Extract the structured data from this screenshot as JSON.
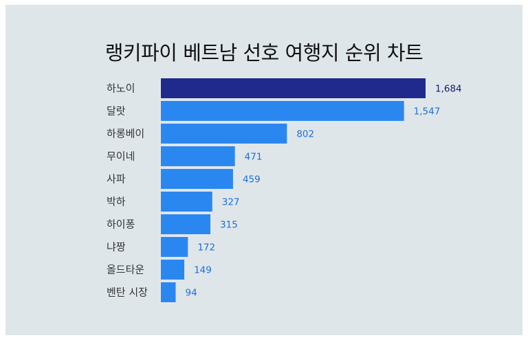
{
  "chart_data": {
    "type": "bar",
    "orientation": "horizontal",
    "title": "랭키파이 베트남 선호 여행지 순위 차트",
    "categories": [
      "하노이",
      "달랏",
      "하롱베이",
      "무이네",
      "사파",
      "박하",
      "하이퐁",
      "냐짱",
      "올드타운",
      "벤탄 시장"
    ],
    "values": [
      1684,
      1547,
      802,
      471,
      459,
      327,
      315,
      172,
      149,
      94
    ],
    "value_labels": [
      "1,684",
      "1,547",
      "802",
      "471",
      "459",
      "327",
      "315",
      "172",
      "149",
      "94"
    ],
    "xlabel": "",
    "ylabel": "",
    "grid": false,
    "legend": "none",
    "colors": {
      "background": "#dfe6ea",
      "highlight_bar": "#1f2a8c",
      "highlight_label": "#111b6e",
      "bar": "#2b87f0",
      "label": "#1d6fd6"
    }
  }
}
